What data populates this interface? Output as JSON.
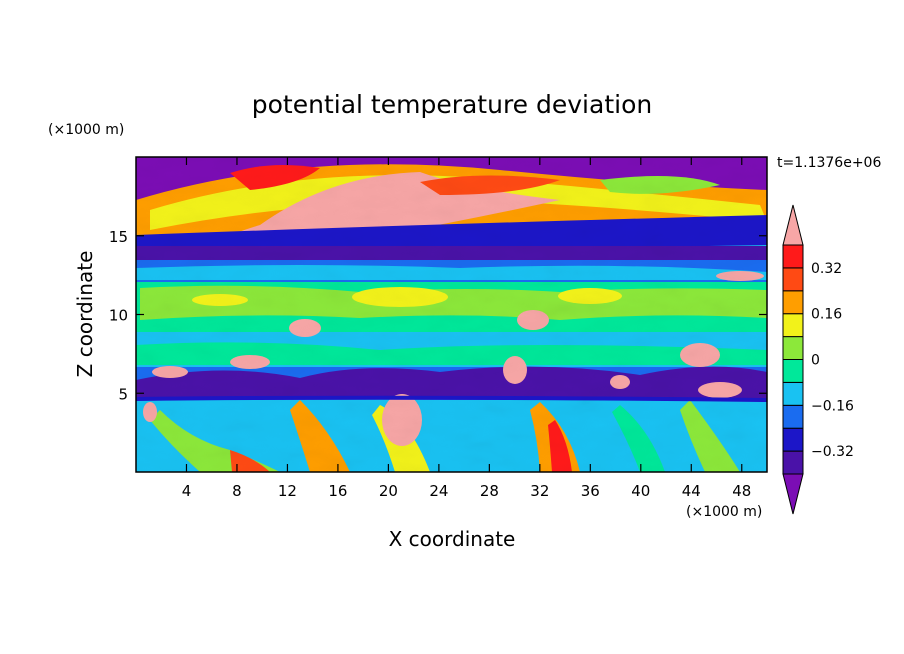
{
  "chart_data": {
    "type": "heatmap",
    "title": "potential temperature deviation",
    "xlabel": "X coordinate",
    "ylabel": "Z coordinate",
    "x_unit": "(×1000 m)",
    "y_unit": "(×1000 m)",
    "time_label": "t=1.1376e+06",
    "xlim": [
      0,
      50
    ],
    "ylim": [
      0,
      20
    ],
    "x_ticks": [
      4,
      8,
      12,
      16,
      20,
      24,
      28,
      32,
      36,
      40,
      44,
      48
    ],
    "y_ticks": [
      5,
      10,
      15
    ],
    "colorbar": {
      "levels": [
        -0.4,
        -0.32,
        -0.24,
        -0.16,
        -0.08,
        0,
        0.08,
        0.16,
        0.24,
        0.32,
        0.4
      ],
      "tick_labels": [
        "0.32",
        "0.16",
        "0",
        "−0.16",
        "−0.32"
      ],
      "tick_values": [
        0.32,
        0.16,
        0,
        -0.16,
        -0.32
      ],
      "colors": [
        "#7b0db5",
        "#4a12a8",
        "#1c16c8",
        "#1a6cf0",
        "#19c2f2",
        "#00e89a",
        "#8ce83a",
        "#f2f21a",
        "#ff9e00",
        "#ff4a14",
        "#ff1a1a",
        "#f7a6a6"
      ]
    }
  }
}
